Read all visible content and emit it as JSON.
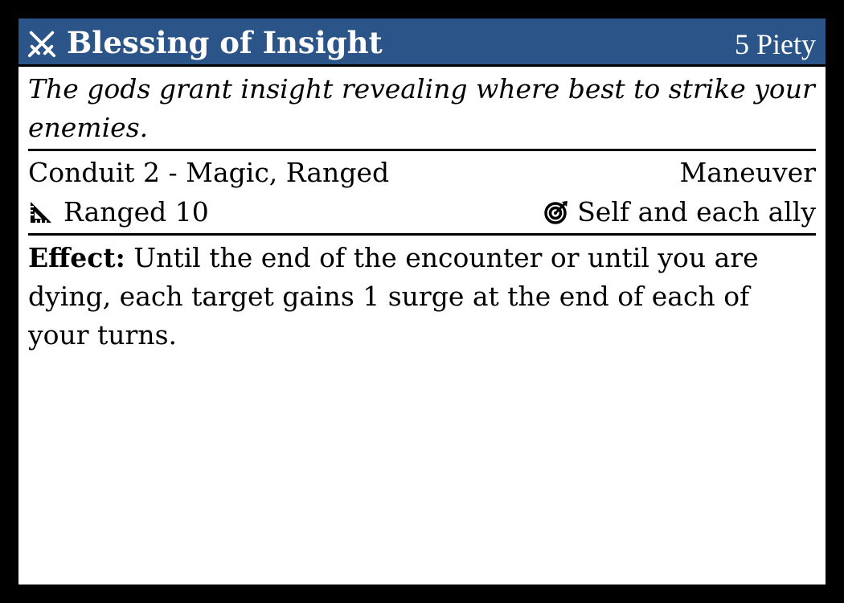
{
  "card": {
    "title": "Blessing of Insight",
    "title_icon": "crossed-swords-icon",
    "cost": "5 Piety",
    "flavor": "The gods grant insight revealing where best to strike your enemies.",
    "keywords": "Conduit 2 - Magic, Ranged",
    "action_type": "Maneuver",
    "distance_icon": "ruler-triangle-icon",
    "distance": "Ranged 10",
    "target_icon": "target-icon",
    "target": "Self and each ally",
    "effect_label": "Effect:",
    "effect_text": "Until the end of the encounter or until you are dying, each target gains 1 surge at the end of each of your turns."
  },
  "colors": {
    "header": "#2b5588",
    "background": "#ffffff",
    "border": "#000000"
  }
}
